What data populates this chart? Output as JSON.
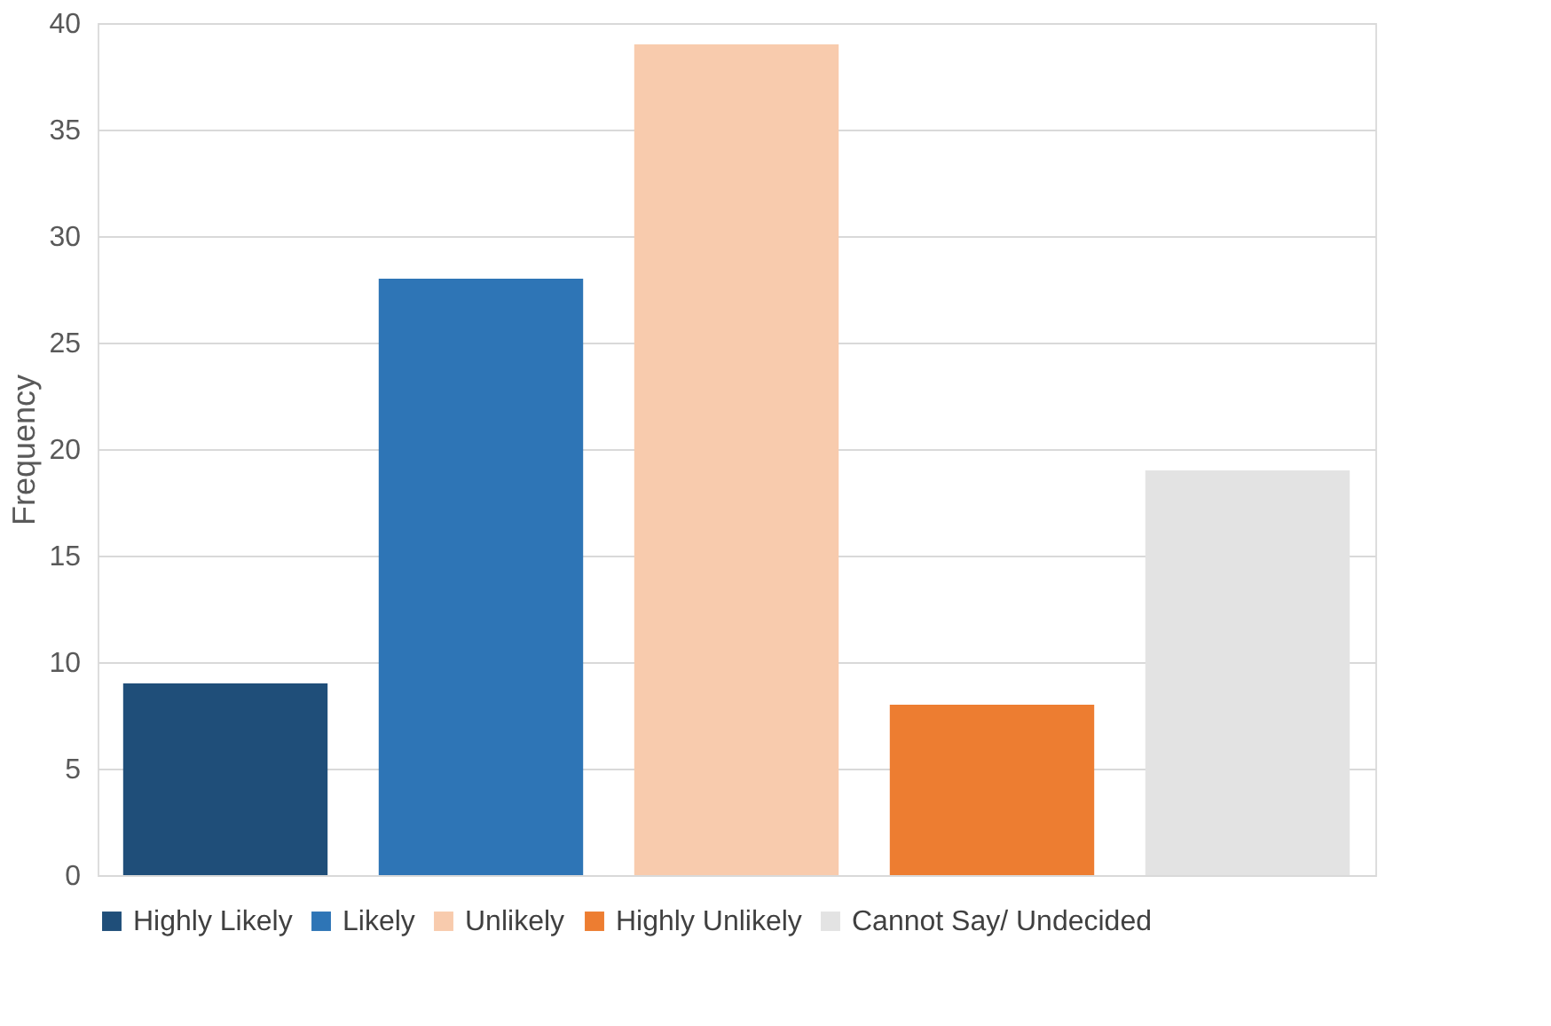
{
  "chart_data": {
    "type": "bar",
    "ylabel": "Frequency",
    "categories": [
      null
    ],
    "series": [
      {
        "name": "Highly Likely",
        "color": "#1f4e79",
        "values": [
          9
        ]
      },
      {
        "name": "Likely",
        "color": "#2e75b6",
        "values": [
          28
        ]
      },
      {
        "name": "Unlikely",
        "color": "#f8cbad",
        "values": [
          39
        ]
      },
      {
        "name": "Highly Unlikely",
        "color": "#ed7d31",
        "values": [
          8
        ]
      },
      {
        "name": "Cannot Say/ Undecided",
        "color": "#e3e3e3",
        "values": [
          19
        ]
      }
    ],
    "ylim": [
      0,
      40
    ],
    "yticks": [
      0,
      5,
      10,
      15,
      20,
      25,
      30,
      35,
      40
    ],
    "grid": "y",
    "legend": "bottom"
  }
}
